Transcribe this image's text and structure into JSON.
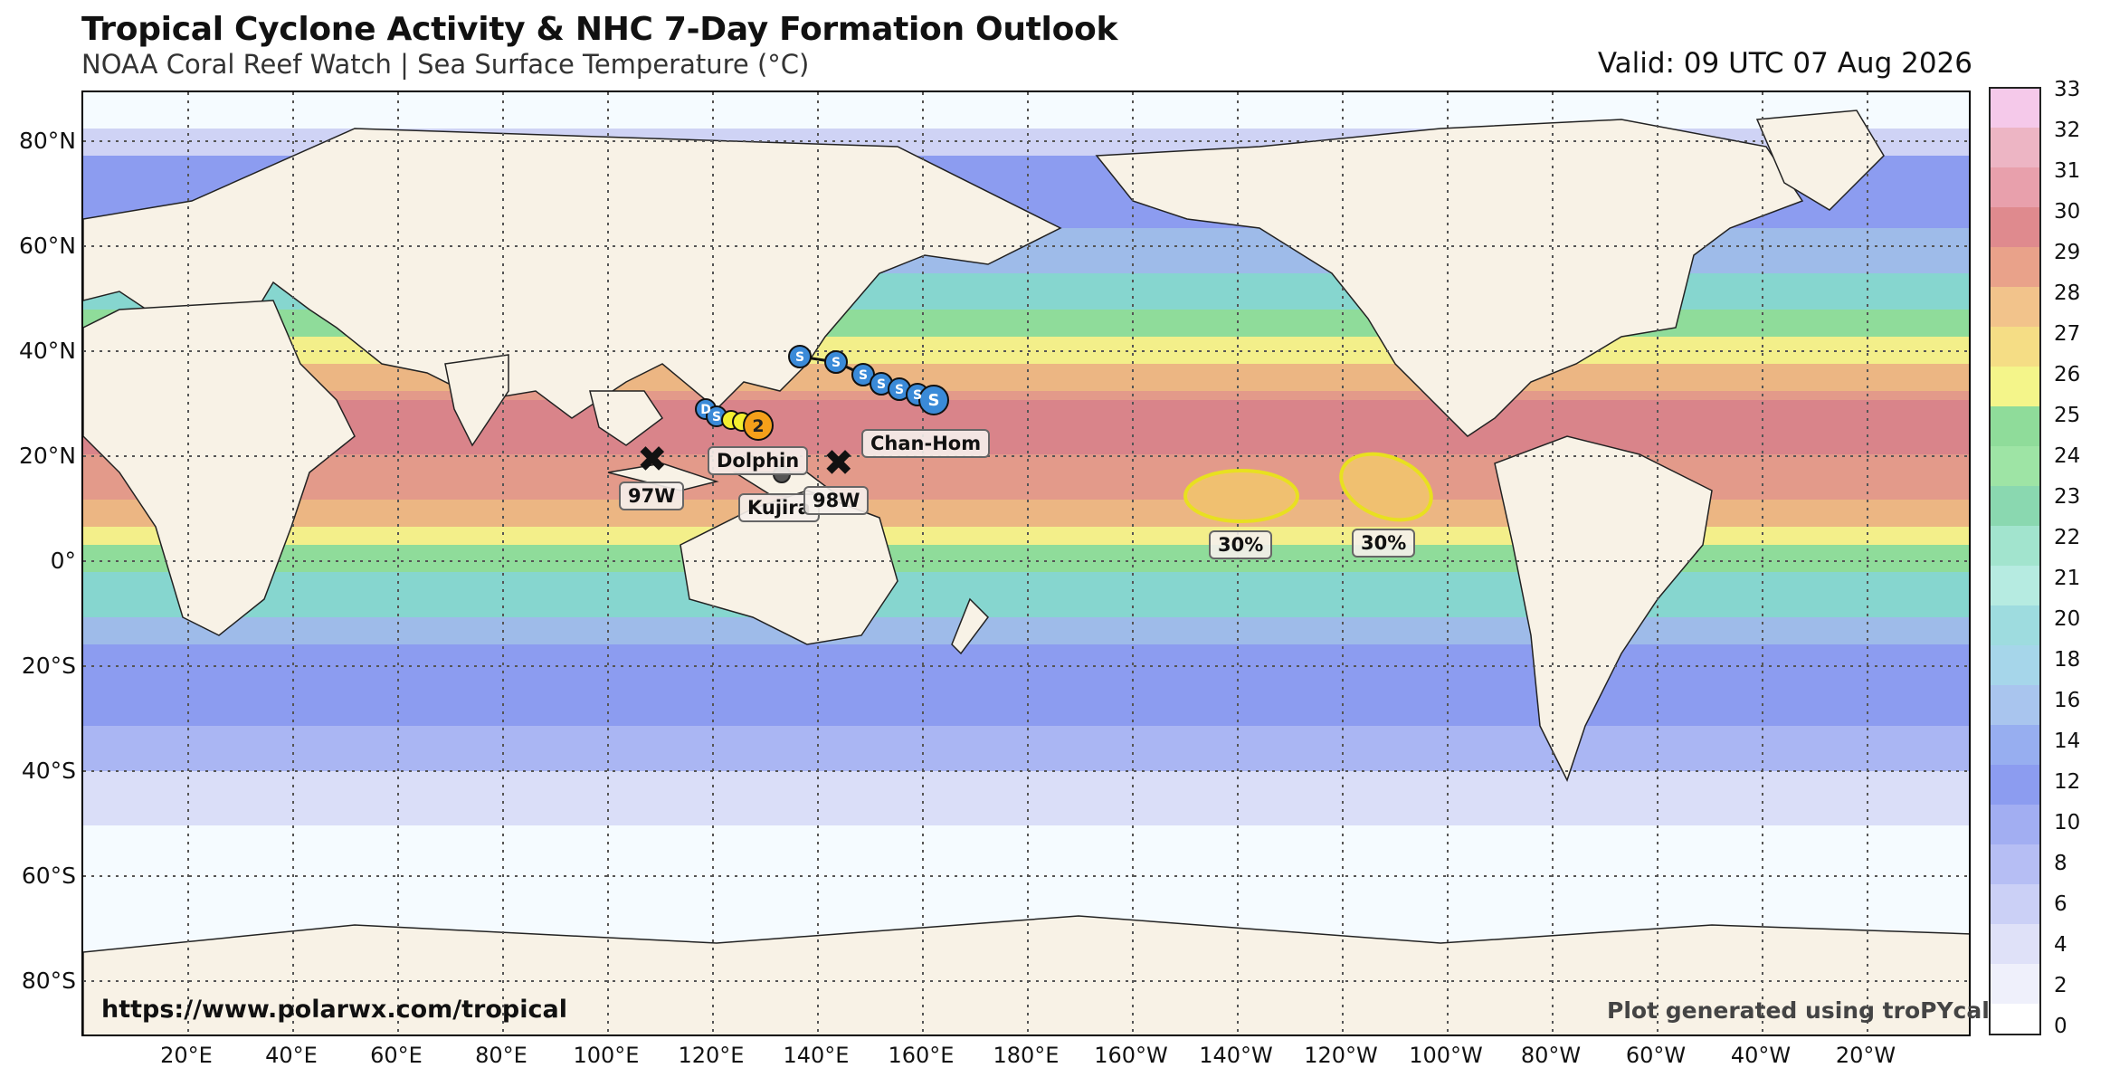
{
  "title": "Tropical Cyclone Activity & NHC 7-Day Formation Outlook",
  "subtitle": "NOAA Coral Reef Watch | Sea Surface Temperature (°C)",
  "valid": "Valid: 09 UTC 07 Aug 2026",
  "url": "https://www.polarwx.com/tropical",
  "credit": "Plot generated using troPYcal",
  "lat_labels": [
    "80°N",
    "60°N",
    "40°N",
    "20°N",
    "0°",
    "20°S",
    "40°S",
    "60°S",
    "80°S"
  ],
  "lon_labels": [
    "20°E",
    "40°E",
    "60°E",
    "80°E",
    "100°E",
    "120°E",
    "140°E",
    "160°E",
    "180°E",
    "160°W",
    "140°W",
    "120°W",
    "100°W",
    "80°W",
    "60°W",
    "40°W",
    "20°W"
  ],
  "colorbar_ticks": [
    "33",
    "32",
    "31",
    "30",
    "29",
    "28",
    "27",
    "26",
    "25",
    "24",
    "23",
    "22",
    "21",
    "20",
    "18",
    "16",
    "14",
    "12",
    "10",
    "8",
    "6",
    "4",
    "2",
    "0"
  ],
  "storms": [
    {
      "name": "Chan-Hom",
      "track_category": "S"
    },
    {
      "name": "Dolphin",
      "track_category": "2"
    },
    {
      "name": "Kujira",
      "track_category": ""
    }
  ],
  "invests": [
    {
      "name": "97W"
    },
    {
      "name": "98W"
    }
  ],
  "outlook_areas": [
    {
      "label": "30%"
    },
    {
      "label": "30%"
    }
  ],
  "track_letters": {
    "subtropical": "S",
    "depression": "D",
    "cat2": "2"
  },
  "colors": {
    "warm": "#e39a8a",
    "hot": "#d9848a",
    "yellow": "#f3ef8a",
    "green": "#8fdc9a",
    "teal": "#86d6cf",
    "blue": "#8c9cf0",
    "land": "#f8f2e6",
    "track_blue": "#3a8ad8",
    "cat2_orange": "#f5a01a",
    "outlook_yellow": "#e8e020"
  }
}
